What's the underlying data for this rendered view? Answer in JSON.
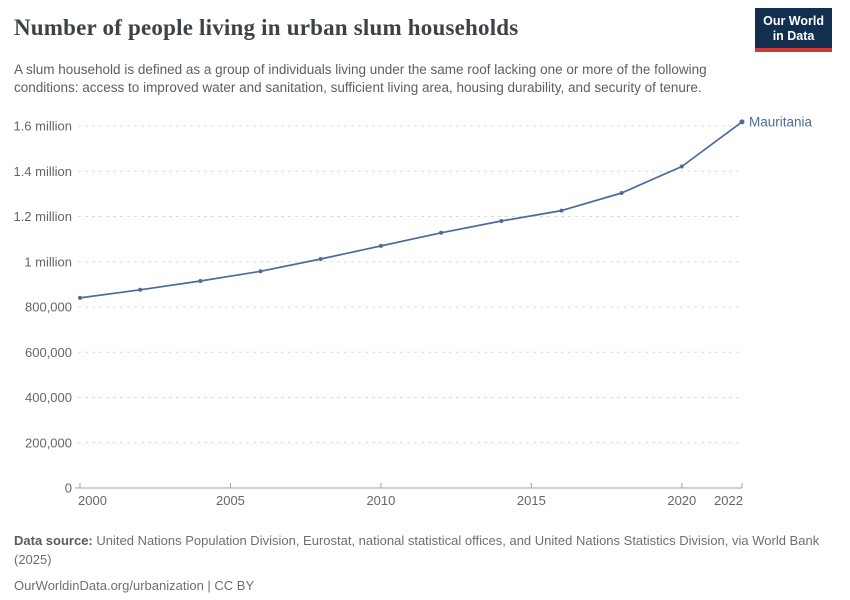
{
  "header": {
    "title": "Number of people living in urban slum households",
    "subtitle": "A slum household is defined as a group of individuals living under the same roof lacking one or more of the following conditions: access to improved water and sanitation, sufficient living area, housing durability, and security of tenure.",
    "logo": {
      "line1": "Our World",
      "line2": "in Data"
    }
  },
  "chart_data": {
    "type": "line",
    "title": "Number of people living in urban slum households",
    "entity_label": "Mauritania",
    "x": [
      2000,
      2002,
      2004,
      2006,
      2008,
      2010,
      2012,
      2014,
      2016,
      2018,
      2020,
      2022
    ],
    "series": [
      {
        "name": "Mauritania",
        "color": "#4c6a9c",
        "values": [
          840000,
          876000,
          915000,
          958000,
          1012000,
          1070000,
          1128000,
          1180000,
          1226000,
          1304000,
          1421000,
          1618000
        ]
      }
    ],
    "xlim": [
      2000,
      2022
    ],
    "ylim": [
      0,
      1600000
    ],
    "x_ticks": [
      2000,
      2005,
      2010,
      2015,
      2020,
      2022
    ],
    "y_ticks": [
      {
        "value": 0,
        "label": "0"
      },
      {
        "value": 200000,
        "label": "200,000"
      },
      {
        "value": 400000,
        "label": "400,000"
      },
      {
        "value": 600000,
        "label": "600,000"
      },
      {
        "value": 800000,
        "label": "800,000"
      },
      {
        "value": 1000000,
        "label": "1 million"
      },
      {
        "value": 1200000,
        "label": "1.2 million"
      },
      {
        "value": 1400000,
        "label": "1.4 million"
      },
      {
        "value": 1600000,
        "label": "1.6 million"
      }
    ],
    "grid": "horizontal-dashed",
    "legend": "entity-label-at-line-end"
  },
  "footer": {
    "datasource_label": "Data source:",
    "datasource_text": "United Nations Population Division, Eurostat, national statistical offices, and United Nations Statistics Division, via World Bank (2025)",
    "link_line": "OurWorldinData.org/urbanization | CC BY"
  },
  "colors": {
    "line": "#4c6a9c",
    "entity_label": "#4c6a9c",
    "gridline": "#dcdcdc",
    "axis": "#a3a3a3",
    "tick_label": "#666666",
    "title": "#3d4248",
    "subtitle": "#5c5f62",
    "logo_background": "#132f50",
    "logo_accent": "#cf3a34"
  }
}
